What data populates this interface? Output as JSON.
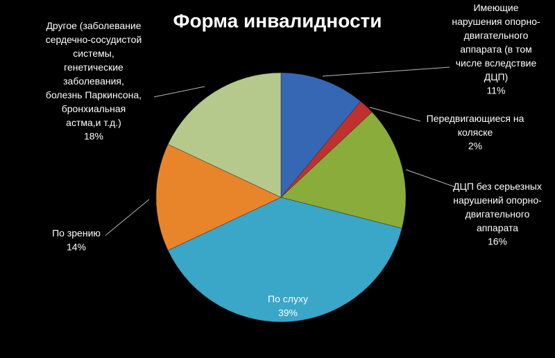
{
  "chart_data": {
    "type": "pie",
    "title": "Форма инвалидности",
    "categories": [
      "Имеющие\nнарушения опорно-\nдвигательного\nаппарата (в том\nчисле вследствие\nДЦП)",
      "Передвигающиеся на\nколяске",
      "ДЦП без серьезных\nнарушений опорно-\nдвигательного\nаппарата",
      "По слуху",
      "По зрению",
      "Другое (заболевание\nсердечно-сосудистой\nсистемы,\nгенетические\nзаболевания,\nболезнь Паркинсона,\nбронхиальная\nастма,и т.д.)"
    ],
    "values": [
      11,
      2,
      16,
      39,
      14,
      18
    ],
    "value_labels": [
      "11%",
      "2%",
      "16%",
      "39%",
      "14%",
      "18%"
    ],
    "colors": [
      "#3567b5",
      "#c0302e",
      "#8aac3a",
      "#3aa6c8",
      "#e8852a",
      "#b6c98c"
    ]
  }
}
